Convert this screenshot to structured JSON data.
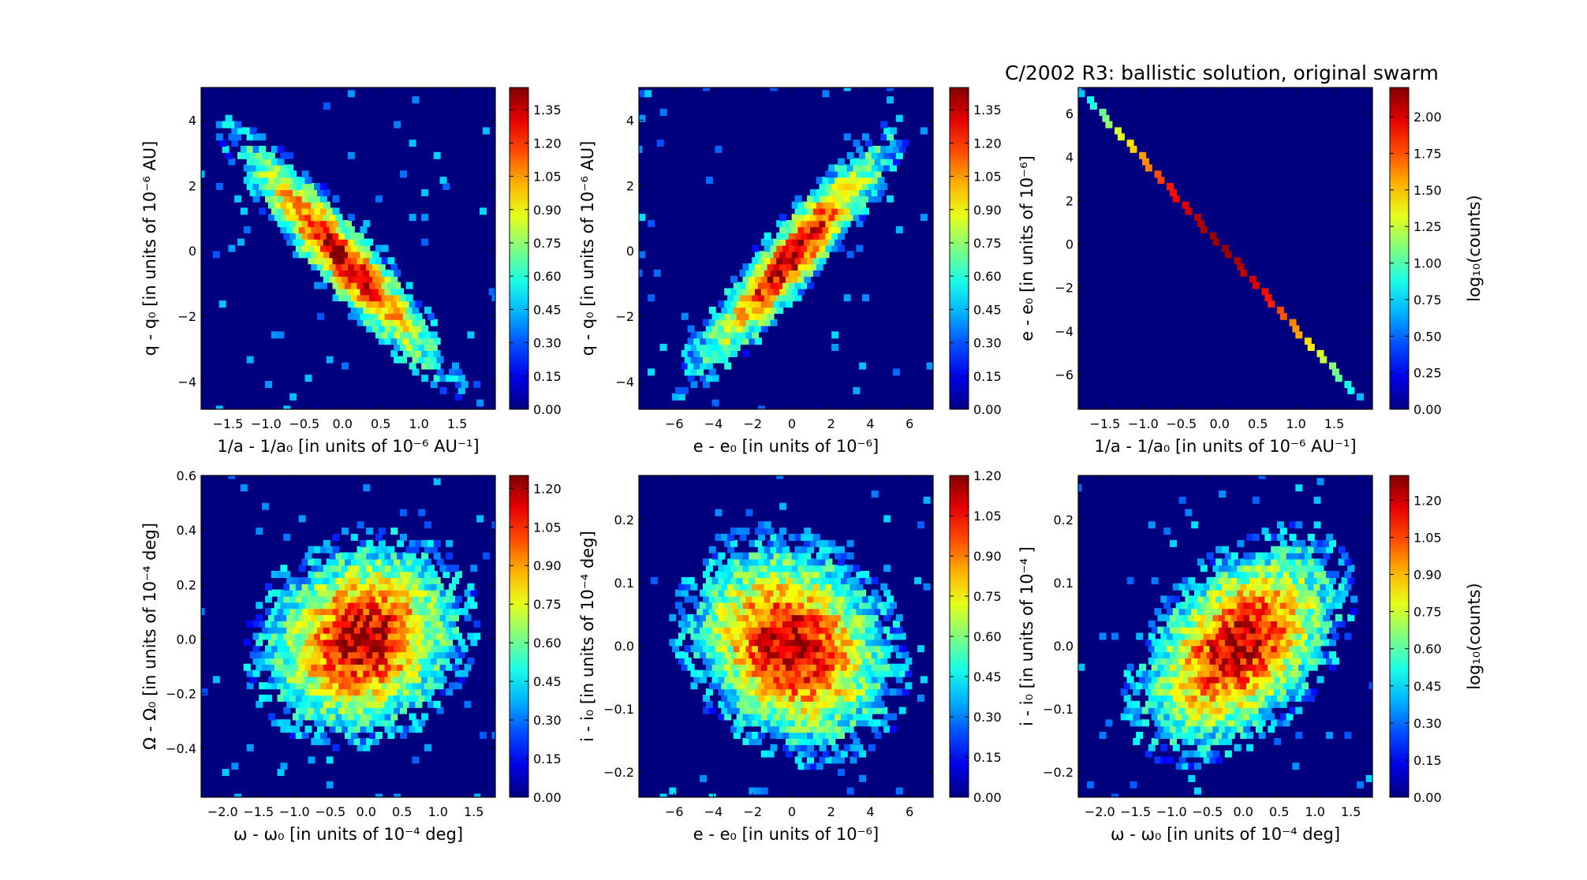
{
  "figure_title": "C/2002 R3:  ballistic solution, original swarm",
  "colorbar_label": "log₁₀(counts)",
  "chart_data": [
    {
      "type": "heatmap",
      "panel": "top-left",
      "title": "",
      "xlabel": "1/a - 1/a₀ [in units of 10⁻⁶ AU⁻¹]",
      "ylabel": "q - q₀ [in units of 10⁻⁶ AU]",
      "xlim": [
        -1.85,
        2.0
      ],
      "ylim": [
        -4.85,
        5.0
      ],
      "xticks": [
        -1.5,
        -1.0,
        -0.5,
        0.0,
        0.5,
        1.0,
        1.5
      ],
      "xtick_labels": [
        "−1.5",
        "−1.0",
        "−0.5",
        "0.0",
        "0.5",
        "1.0",
        "1.5"
      ],
      "yticks": [
        -4,
        -2,
        0,
        2,
        4
      ],
      "ytick_labels": [
        "−4",
        "−2",
        "0",
        "2",
        "4"
      ],
      "distribution": {
        "center_x": 0.0,
        "center_y": -0.2,
        "sigma_x": 0.55,
        "sigma_y": 1.45,
        "correlation": -0.93
      },
      "colorbar": {
        "min": 0.0,
        "max": 1.45,
        "ticks": [
          0.0,
          0.15,
          0.3,
          0.45,
          0.6,
          0.75,
          0.9,
          1.05,
          1.2,
          1.35
        ],
        "tick_labels": [
          "0.00",
          "0.15",
          "0.30",
          "0.45",
          "0.60",
          "0.75",
          "0.90",
          "1.05",
          "1.20",
          "1.35"
        ],
        "label": ""
      }
    },
    {
      "type": "heatmap",
      "panel": "top-middle",
      "title": "",
      "xlabel": "e - e₀ [in units of 10⁻⁶]",
      "ylabel": "q - q₀ [in units of 10⁻⁶ AU]",
      "xlim": [
        -7.8,
        7.2
      ],
      "ylim": [
        -4.85,
        5.0
      ],
      "xticks": [
        -6,
        -4,
        -2,
        0,
        2,
        4,
        6
      ],
      "xtick_labels": [
        "−6",
        "−4",
        "−2",
        "0",
        "2",
        "4",
        "6"
      ],
      "yticks": [
        -4,
        -2,
        0,
        2,
        4
      ],
      "ytick_labels": [
        "−4",
        "−2",
        "0",
        "2",
        "4"
      ],
      "distribution": {
        "center_x": 0.0,
        "center_y": -0.2,
        "sigma_x": 2.05,
        "sigma_y": 1.45,
        "correlation": 0.93
      },
      "colorbar": {
        "min": 0.0,
        "max": 1.45,
        "ticks": [
          0.0,
          0.15,
          0.3,
          0.45,
          0.6,
          0.75,
          0.9,
          1.05,
          1.2,
          1.35
        ],
        "tick_labels": [
          "0.00",
          "0.15",
          "0.30",
          "0.45",
          "0.60",
          "0.75",
          "0.90",
          "1.05",
          "1.20",
          "1.35"
        ],
        "label": ""
      }
    },
    {
      "type": "heatmap",
      "panel": "top-right",
      "title": "",
      "xlabel": "1/a - 1/a₀ [in units of 10⁻⁶ AU⁻¹]",
      "ylabel": "e - e₀ [in units of 10⁻⁶]",
      "xlim": [
        -1.85,
        2.0
      ],
      "ylim": [
        -7.6,
        7.2
      ],
      "xticks": [
        -1.5,
        -1.0,
        -0.5,
        0.0,
        0.5,
        1.0,
        1.5
      ],
      "xtick_labels": [
        "−1.5",
        "−1.0",
        "−0.5",
        "0.0",
        "0.5",
        "1.0",
        "1.5"
      ],
      "yticks": [
        -6,
        -4,
        -2,
        0,
        2,
        4,
        6
      ],
      "ytick_labels": [
        "−6",
        "−4",
        "−2",
        "0",
        "2",
        "4",
        "6"
      ],
      "distribution": {
        "center_x": 0.0,
        "center_y": 0.0,
        "sigma_x": 0.55,
        "sigma_y": 2.05,
        "correlation": -0.9999,
        "line_from": [
          -1.85,
          7.2
        ],
        "line_to": [
          1.85,
          -7.2
        ]
      },
      "colorbar": {
        "min": 0.0,
        "max": 2.2,
        "ticks": [
          0.0,
          0.25,
          0.5,
          0.75,
          1.0,
          1.25,
          1.5,
          1.75,
          2.0
        ],
        "tick_labels": [
          "0.00",
          "0.25",
          "0.50",
          "0.75",
          "1.00",
          "1.25",
          "1.50",
          "1.75",
          "2.00"
        ],
        "label": "log₁₀(counts)"
      }
    },
    {
      "type": "heatmap",
      "panel": "bottom-left",
      "title": "",
      "xlabel": "ω - ω₀ [in units of 10⁻⁴ deg]",
      "ylabel": "Ω - Ω₀ [in units of 10⁻⁴ deg]",
      "xlim": [
        -2.3,
        1.8
      ],
      "ylim": [
        -0.58,
        0.6
      ],
      "xticks": [
        -2.0,
        -1.5,
        -1.0,
        -0.5,
        0.0,
        0.5,
        1.0,
        1.5
      ],
      "xtick_labels": [
        "−2.0",
        "−1.5",
        "−1.0",
        "−0.5",
        "0.0",
        "0.5",
        "1.0",
        "1.5"
      ],
      "yticks": [
        -0.4,
        -0.2,
        0.0,
        0.2,
        0.4,
        0.6
      ],
      "ytick_labels": [
        "−0.4",
        "−0.2",
        "0.0",
        "0.2",
        "0.4",
        "0.6"
      ],
      "distribution": {
        "center_x": -0.05,
        "center_y": 0.0,
        "sigma_x": 0.55,
        "sigma_y": 0.14,
        "correlation": 0.15
      },
      "colorbar": {
        "min": 0.0,
        "max": 1.25,
        "ticks": [
          0.0,
          0.15,
          0.3,
          0.45,
          0.6,
          0.75,
          0.9,
          1.05,
          1.2
        ],
        "tick_labels": [
          "0.00",
          "0.15",
          "0.30",
          "0.45",
          "0.60",
          "0.75",
          "0.90",
          "1.05",
          "1.20"
        ],
        "label": ""
      }
    },
    {
      "type": "heatmap",
      "panel": "bottom-middle",
      "title": "",
      "xlabel": "e - e₀ [in units of 10⁻⁶]",
      "ylabel": "i - i₀ [in units of 10⁻⁴ deg]",
      "xlim": [
        -7.8,
        7.2
      ],
      "ylim": [
        -0.24,
        0.27
      ],
      "xticks": [
        -6,
        -4,
        -2,
        0,
        2,
        4,
        6
      ],
      "xtick_labels": [
        "−6",
        "−4",
        "−2",
        "0",
        "2",
        "4",
        "6"
      ],
      "yticks": [
        -0.2,
        -0.1,
        0.0,
        0.1,
        0.2
      ],
      "ytick_labels": [
        "−0.2",
        "−0.1",
        "0.0",
        "0.1",
        "0.2"
      ],
      "distribution": {
        "center_x": 0.0,
        "center_y": 0.0,
        "sigma_x": 2.05,
        "sigma_y": 0.065,
        "correlation": -0.2
      },
      "colorbar": {
        "min": 0.0,
        "max": 1.2,
        "ticks": [
          0.0,
          0.15,
          0.3,
          0.45,
          0.6,
          0.75,
          0.9,
          1.05,
          1.2
        ],
        "tick_labels": [
          "0.00",
          "0.15",
          "0.30",
          "0.45",
          "0.60",
          "0.75",
          "0.90",
          "1.05",
          "1.20"
        ],
        "label": ""
      }
    },
    {
      "type": "heatmap",
      "panel": "bottom-right",
      "title": "",
      "xlabel": "ω - ω₀ [in units of 10⁻⁴ deg]",
      "ylabel": "i - i₀ [in units of 10⁻⁴ ]",
      "xlim": [
        -2.3,
        1.8
      ],
      "ylim": [
        -0.24,
        0.27
      ],
      "xticks": [
        -2.0,
        -1.5,
        -1.0,
        -0.5,
        0.0,
        0.5,
        1.0,
        1.5
      ],
      "xtick_labels": [
        "−2.0",
        "−1.5",
        "−1.0",
        "−0.5",
        "0.0",
        "0.5",
        "1.0",
        "1.5"
      ],
      "yticks": [
        -0.2,
        -0.1,
        0.0,
        0.1,
        0.2
      ],
      "ytick_labels": [
        "−0.2",
        "−0.1",
        "0.0",
        "0.1",
        "0.2"
      ],
      "distribution": {
        "center_x": -0.05,
        "center_y": 0.0,
        "sigma_x": 0.55,
        "sigma_y": 0.065,
        "correlation": 0.45
      },
      "colorbar": {
        "min": 0.0,
        "max": 1.3,
        "ticks": [
          0.0,
          0.15,
          0.3,
          0.45,
          0.6,
          0.75,
          0.9,
          1.05,
          1.2
        ],
        "tick_labels": [
          "0.00",
          "0.15",
          "0.30",
          "0.45",
          "0.60",
          "0.75",
          "0.90",
          "1.05",
          "1.20"
        ],
        "label": "log₁₀(counts)"
      }
    }
  ]
}
